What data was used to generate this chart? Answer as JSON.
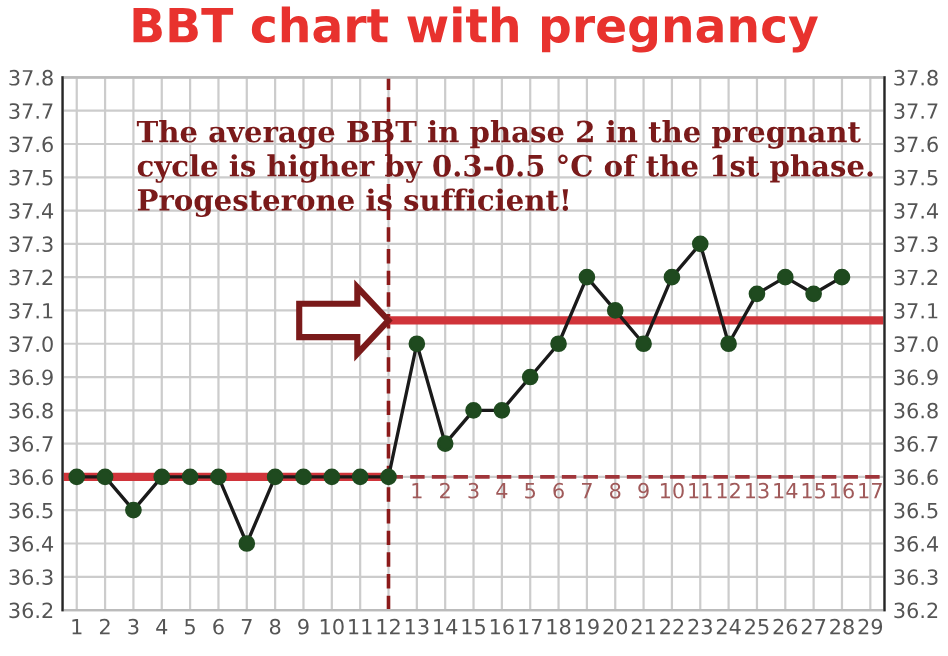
{
  "chart_data": {
    "type": "line",
    "title": "BBT chart with pregnancy",
    "x": [
      1,
      2,
      3,
      4,
      5,
      6,
      7,
      8,
      9,
      10,
      11,
      12,
      13,
      14,
      15,
      16,
      17,
      18,
      19,
      20,
      21,
      22,
      23,
      24,
      25,
      26,
      27,
      28
    ],
    "x2lim": [
      -11.5,
      17.5
    ],
    "x2ticks": [
      1,
      2,
      3,
      4,
      5,
      6,
      7,
      8,
      9,
      10,
      11,
      12,
      13,
      14,
      15,
      16,
      17
    ],
    "xlim": [
      0.5,
      29.5
    ],
    "xticks": [
      1,
      2,
      3,
      4,
      5,
      6,
      7,
      8,
      9,
      10,
      11,
      12,
      13,
      14,
      15,
      16,
      17,
      18,
      19,
      20,
      21,
      22,
      23,
      24,
      25,
      26,
      27,
      28,
      29
    ],
    "ylim": [
      36.2,
      37.8
    ],
    "yticks": [
      36.2,
      36.3,
      36.4,
      36.5,
      36.6,
      36.7,
      36.8,
      36.9,
      {
        "value": 37.0,
        "label": "37.0"
      },
      37.1,
      37.2,
      37.3,
      37.4,
      37.5,
      37.6,
      37.7,
      37.8
    ],
    "y2lim": [
      36.2,
      37.8
    ],
    "y2ticks": [
      36.2,
      36.3,
      36.4,
      36.5,
      36.6,
      36.7,
      36.8,
      36.9,
      {
        "value": 37.0,
        "label": "37.0"
      },
      37.1,
      37.2,
      37.3,
      37.4,
      37.5,
      37.6,
      37.7,
      37.8
    ],
    "grid": true,
    "marker": "circle",
    "series": [
      {
        "color": "#1f4a1f",
        "values": [
          36.6,
          36.6,
          36.5,
          36.6,
          36.6,
          36.6,
          36.4,
          36.6,
          36.6,
          36.6,
          36.6,
          36.6,
          37.0,
          36.7,
          36.8,
          36.8,
          36.9,
          37.0,
          37.2,
          37.1,
          37.0,
          37.2,
          37.3,
          37.0,
          37.15,
          37.2,
          37.15,
          37.2
        ]
      },
      {
        "type": "line",
        "color": "#d0343a",
        "x": [
          0.5,
          12
        ],
        "values": [
          36.6,
          36.6
        ],
        "marker": "none",
        "line_style": "solid"
      },
      {
        "type": "line",
        "color": "#d0343a",
        "x": [
          12,
          29.5
        ],
        "values": [
          37.07,
          37.07
        ],
        "marker": "none",
        "line_style": "solid"
      },
      {
        "type": "line",
        "color": "#a0353a",
        "x": [
          12,
          29.5
        ],
        "values": [
          36.6,
          36.6
        ],
        "marker": "none",
        "line_style": "dashed"
      }
    ],
    "ref_lines": [
      {
        "axis": "x",
        "value": 12,
        "color": "#8b1a1a",
        "line_style": "dashed"
      }
    ],
    "annotations": [
      "The average BBT in phase 2 in the pregnant cycle is higher by 0.3-0.5 °C of the 1st phase. Progesterone is sufficient!"
    ]
  }
}
